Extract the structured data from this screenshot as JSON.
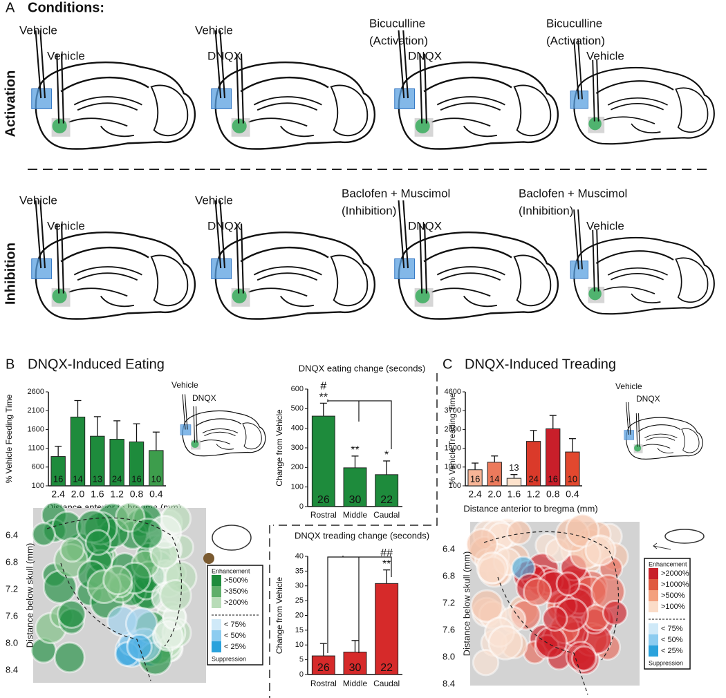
{
  "panel_a": {
    "label": "A",
    "title": "Conditions:",
    "rows": [
      {
        "name": "Activation",
        "columns": [
          {
            "top": [
              "Vehicle"
            ],
            "bottom": "Vehicle"
          },
          {
            "top": [
              "Vehicle"
            ],
            "bottom": "DNQX"
          },
          {
            "top": [
              "Bicuculline",
              "(Activation)"
            ],
            "bottom": "DNQX"
          },
          {
            "top": [
              "Bicuculline",
              "(Activation)"
            ],
            "bottom": "Vehicle"
          }
        ]
      },
      {
        "name": "Inhibition",
        "columns": [
          {
            "top": [
              "Vehicle"
            ],
            "bottom": "Vehicle"
          },
          {
            "top": [
              "Vehicle"
            ],
            "bottom": "DNQX"
          },
          {
            "top": [
              "Baclofen + Muscimol",
              "(Inhibition)"
            ],
            "bottom": "DNQX"
          },
          {
            "top": [
              "Baclofen + Muscimol",
              "(Inhibition)"
            ],
            "bottom": "Vehicle"
          }
        ]
      }
    ]
  },
  "panel_b": {
    "label": "B",
    "title": "DNQX-Induced Eating",
    "inset_labels": [
      "Vehicle",
      "DNQX"
    ],
    "map": {
      "y_label": "Distance below skull (mm)",
      "y_labels": [
        "6.4",
        "6.8",
        "7.2",
        "7.6",
        "8.0",
        "8.4"
      ],
      "legend": {
        "top": "Enhancement",
        "enhancement": [
          ">500%",
          ">350%",
          ">200%"
        ],
        "suppression": [
          "< 75%",
          "< 50%",
          "< 25%"
        ],
        "bottom": "Suppression"
      }
    }
  },
  "panel_c": {
    "label": "C",
    "title": "DNQX-Induced Treading",
    "inset_labels": [
      "Vehicle",
      "DNQX"
    ],
    "map": {
      "y_label": "Distance below skull (mm)",
      "y_labels": [
        "6.4",
        "6.8",
        "7.2",
        "7.6",
        "8.0",
        "8.4"
      ],
      "legend": {
        "top": "Enhancement",
        "enhancement": [
          ">2000%",
          ">1000%",
          ">500%",
          ">100%"
        ],
        "suppression": [
          "< 75%",
          "< 50%",
          "< 25%"
        ],
        "bottom": "Suppression"
      }
    }
  },
  "chart_data": [
    {
      "type": "bar",
      "y_label": "% Vehicle Feeding Time",
      "x_label": "Distance anterior to bregma (mm)",
      "categories": [
        "2.4",
        "2.0",
        "1.6",
        "1.2",
        "0.8",
        "0.4"
      ],
      "values": [
        880,
        1930,
        1420,
        1340,
        1270,
        1040
      ],
      "errors": [
        270,
        440,
        520,
        490,
        480,
        490
      ],
      "n_labels": [
        16,
        14,
        13,
        24,
        16,
        10
      ],
      "colors": [
        "#1e8b3c",
        "#1e8b3c",
        "#1e8b3c",
        "#1e8b3c",
        "#1e8b3c",
        "#3d9d4c"
      ],
      "ylim": [
        100,
        2600
      ],
      "yticks": [
        100,
        600,
        1100,
        1600,
        2100,
        2600
      ]
    },
    {
      "type": "bar",
      "title": "DNQX eating change (seconds)",
      "y_label": "Change from Vehicle",
      "categories": [
        "Rostral",
        "Middle",
        "Caudal"
      ],
      "values": [
        462,
        198,
        163
      ],
      "errors": [
        66,
        60,
        70
      ],
      "n_labels": [
        26,
        30,
        22
      ],
      "annotations": [
        [
          "**",
          "#"
        ],
        [
          "**"
        ],
        [
          "*"
        ]
      ],
      "colors": [
        "#1e8b3c",
        "#1e8b3c",
        "#1e8b3c"
      ],
      "ylim": [
        0,
        600
      ],
      "yticks": [
        0,
        100,
        200,
        300,
        400,
        500,
        600
      ]
    },
    {
      "type": "bar",
      "title": "DNQX treading change (seconds)",
      "y_label": "Change from Vehicle",
      "categories": [
        "Rostral",
        "Middle",
        "Caudal"
      ],
      "values": [
        6.3,
        7.6,
        30.8
      ],
      "errors": [
        4.2,
        3.9,
        4.6
      ],
      "n_labels": [
        26,
        30,
        22
      ],
      "annotations": [
        [],
        [],
        [
          "**",
          "##"
        ]
      ],
      "colors": [
        "#d62a2a",
        "#d62a2a",
        "#d62a2a"
      ],
      "ylim": [
        0,
        40
      ],
      "yticks": [
        0,
        5,
        10,
        15,
        20,
        25,
        30,
        35,
        40
      ]
    },
    {
      "type": "bar",
      "y_label": "% Vehicle Treading Time",
      "x_label": "Distance anterior to bregma (mm)",
      "categories": [
        "2.4",
        "2.0",
        "1.6",
        "1.2",
        "0.8",
        "0.4"
      ],
      "values": [
        870,
        1230,
        460,
        2230,
        2830,
        1720
      ],
      "errors": [
        320,
        300,
        180,
        520,
        640,
        640
      ],
      "n_labels": [
        16,
        14,
        13,
        24,
        16,
        10
      ],
      "colors": [
        "#f7b597",
        "#ec7a5c",
        "#fde2cc",
        "#da3a2a",
        "#c81f2a",
        "#e2482e"
      ],
      "ylim": [
        100,
        4600
      ],
      "yticks": [
        100,
        1000,
        1900,
        2800,
        3700,
        4600
      ]
    }
  ]
}
